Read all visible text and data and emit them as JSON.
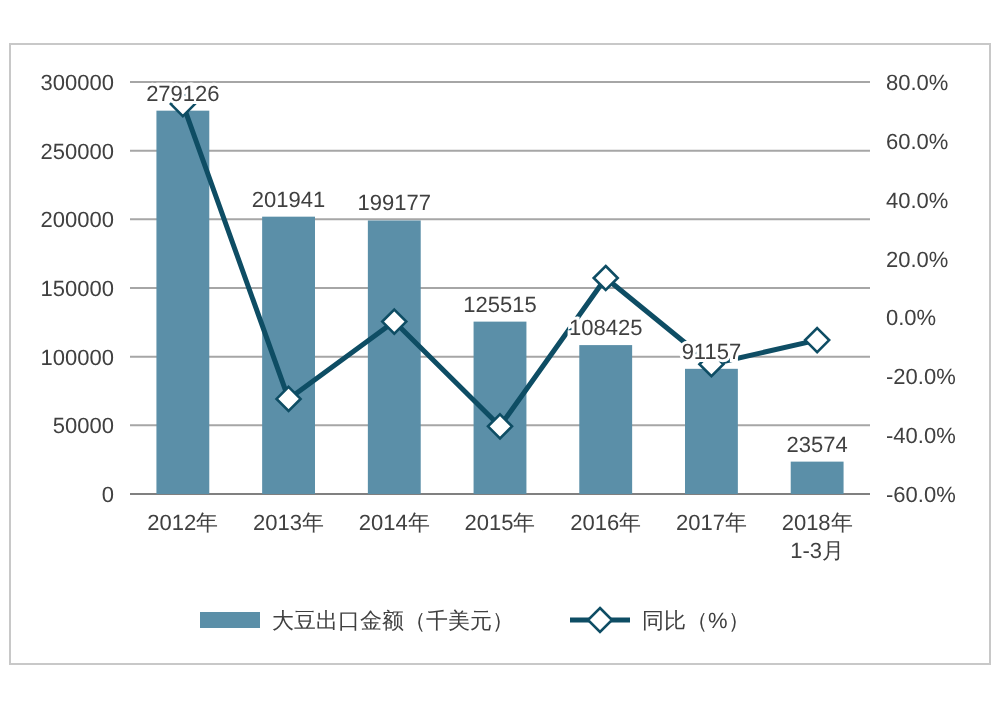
{
  "chart_data": {
    "type": "bar",
    "categories": [
      "2012年",
      "2013年",
      "2014年",
      "2015年",
      "2016年",
      "2017年",
      "2018年\n1-3月"
    ],
    "series": [
      {
        "name": "大豆出口金额（千美元）",
        "color": "#5b8fa8",
        "values": [
          279126,
          201941,
          199177,
          125515,
          108425,
          91157,
          23574
        ],
        "value_labels": [
          "279126",
          "201941",
          "199177",
          "125515",
          "108425",
          "91157",
          "23574"
        ]
      },
      {
        "name": "同比（%）",
        "type": "line",
        "axis": "y2",
        "color": "#0e4d64",
        "marker": "diamond",
        "values": [
          72.5,
          -27.7,
          -1.4,
          -37.0,
          13.4,
          -15.9,
          -7.7
        ]
      }
    ],
    "ylim": [
      0,
      300000
    ],
    "yticks": [
      0,
      50000,
      100000,
      150000,
      200000,
      250000,
      300000
    ],
    "y2lim": [
      -60,
      80
    ],
    "y2ticks": [
      {
        "value": -60,
        "label": "-60.0%"
      },
      {
        "value": -40,
        "label": "-40.0%"
      },
      {
        "value": -20,
        "label": "-20.0%"
      },
      {
        "value": 0,
        "label": "0.0%"
      },
      {
        "value": 20,
        "label": "20.0%"
      },
      {
        "value": 40,
        "label": "40.0%"
      },
      {
        "value": 60,
        "label": "60.0%"
      },
      {
        "value": 80,
        "label": "80.0%"
      }
    ],
    "grid": "y",
    "legend": "bottom"
  }
}
